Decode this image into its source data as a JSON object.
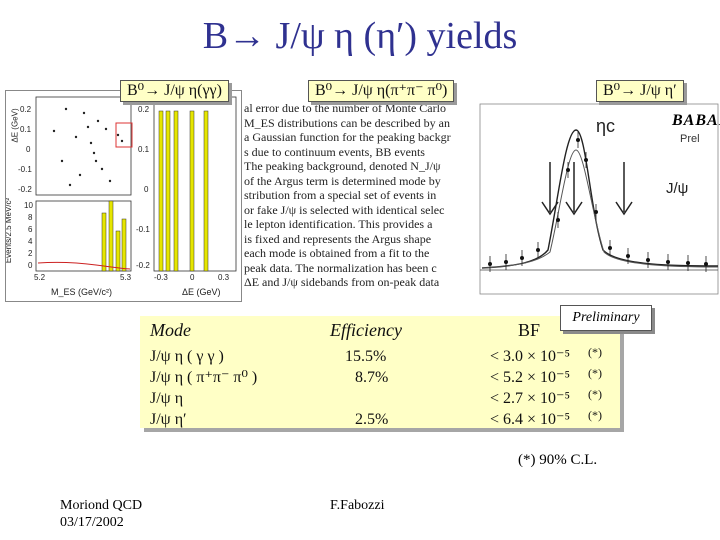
{
  "slide": {
    "title": "B→ J/ψ η (η′) yields",
    "footer_left_line1": "Moriond QCD",
    "footer_left_line2": "03/17/2002",
    "footer_center": "F.Fabozzi",
    "cl_note": "(*) 90% C.L."
  },
  "labels": {
    "left": "B⁰→ J/ψ η(γγ)",
    "middle": "B⁰→ J/ψ η(π⁺π⁻ π⁰)",
    "right": "B⁰→ J/ψ η′"
  },
  "left_plot": {
    "y_axis_top_label": "ΔE (GeV)",
    "y_axis_bottom_label": "Events/2.5 MeV/c²",
    "x_axis_label": "M_ES (GeV/c²)",
    "ticks_top": [
      "0.2",
      "0.1",
      "0",
      "-0.1",
      "-0.2"
    ],
    "ticks_bottom": [
      "10",
      "8",
      "6",
      "4",
      "2",
      "0"
    ],
    "ticks_x": [
      "5.2",
      "5.3"
    ]
  },
  "middle_plot": {
    "ticks_y": [
      "0.2",
      "0.1",
      "0",
      "-0.1",
      "-0.2"
    ],
    "ticks_x": [
      "-0.3",
      "0",
      "0.3"
    ],
    "x_axis_label": "ΔE (GeV)"
  },
  "document_text": [
    "al error due to the number of Monte Carlo",
    "M_ES distributions can be described by an",
    "a Gaussian function for the peaking backgr",
    "s due to continuum events, BB events",
    "The peaking background, denoted N_J/ψ",
    "of the Argus term is determined mode by",
    "stribution from a special set of events in",
    "or fake J/ψ is selected with identical selec",
    "le lepton identification. This provides a",
    "is fixed and represents the Argus shape",
    "each mode is obtained from a fit to the",
    "peak data. The normalization has been c",
    "ΔE and J/ψ sidebands from on-peak data"
  ],
  "right_plot": {
    "eta_c_label": "ηc",
    "jpsi_label": "J/ψ",
    "logo": "BABAR",
    "prelim_small": "Prel"
  },
  "table": {
    "head_mode": "Mode",
    "head_eff": "Efficiency",
    "head_bf": "BF",
    "preliminary": "Preliminary",
    "rows": [
      {
        "mode": "J/ψ η ( γ γ )",
        "eff": "15.5%",
        "bf": "< 3.0 × 10⁻⁵",
        "mark": "(*)"
      },
      {
        "mode": "J/ψ η ( π⁺π⁻ π⁰ )",
        "eff": "8.7%",
        "bf": "< 5.2 × 10⁻⁵",
        "mark": "(*)"
      },
      {
        "mode": "J/ψ η",
        "eff": "",
        "bf": "< 2.7 × 10⁻⁵",
        "mark": "(*)"
      },
      {
        "mode": "J/ψ η′",
        "eff": "2.5%",
        "bf": "< 6.4 × 10⁻⁵",
        "mark": "(*)"
      }
    ]
  },
  "colors": {
    "title": "#2f3190",
    "box_fill": "#ffffc6",
    "bar_fill": "#e6e600",
    "curve": "#cc2222"
  }
}
